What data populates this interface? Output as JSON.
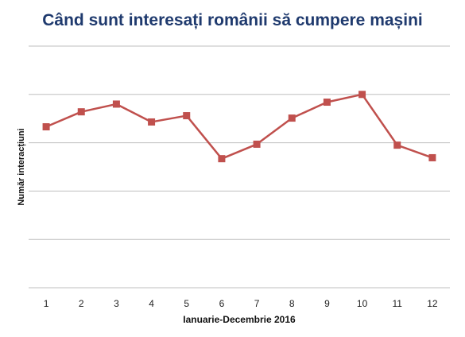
{
  "chart_data": {
    "type": "line",
    "title": "Când sunt interesați românii să cumpere mașini",
    "xlabel": "Ianuarie-Decembrie 2016",
    "ylabel": "Număr interacțiuni",
    "categories": [
      "1",
      "2",
      "3",
      "4",
      "5",
      "6",
      "7",
      "8",
      "9",
      "10",
      "11",
      "12"
    ],
    "series": [
      {
        "values": [
          3.33,
          3.64,
          3.8,
          3.43,
          3.56,
          2.67,
          2.97,
          3.51,
          3.84,
          4.0,
          2.95,
          2.69
        ]
      }
    ],
    "ylim": [
      0,
      5
    ],
    "grid": true,
    "legend": "none",
    "colors": {
      "series": "#c0504d",
      "grid": "#bfbfbf",
      "title": "#1f3a6e"
    }
  }
}
